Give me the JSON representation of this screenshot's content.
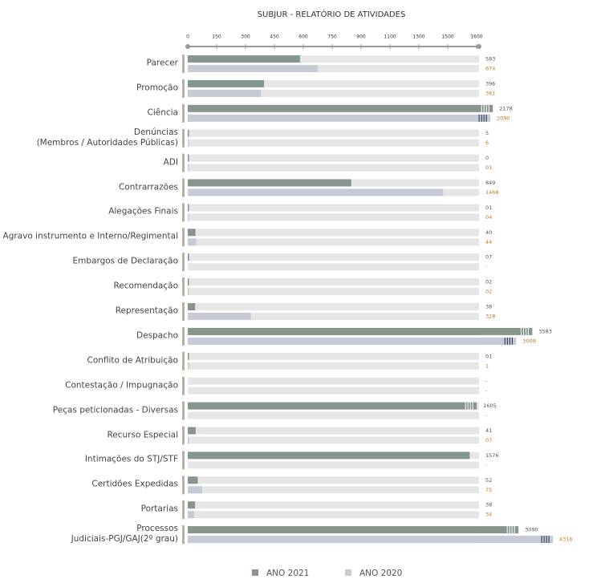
{
  "chart_data": {
    "type": "bar",
    "orientation": "horizontal",
    "title": "SUBJUR - RELATÓRIO DE ATIVIDADES",
    "categories": [
      "Parecer",
      "Promoção",
      "Ciência",
      "Denúncias\n(Membros / Autoridades Públicas)",
      "ADI",
      "Contrarrazões",
      "Alegações Finais",
      "Agravo instrumento e Interno/Regimental",
      "Embargos de Declaração",
      "Recomendação",
      "Representação",
      "Despacho",
      "Conflito de Atribuição",
      "Contestação / Impugnação",
      "Peças peticionadas - Diversas",
      "Recurso Especial",
      "Intimações do STJ/STF",
      "Certidões Expedidas",
      "Portarias",
      "Processos\nJudiciais-PGJ/GAJ(2º grau)"
    ],
    "series": [
      {
        "name": "ANO 2021",
        "color": "#87968d",
        "label_color": "#555555",
        "values": [
          583,
          396,
          2178,
          5,
          0,
          849,
          1,
          40,
          7,
          2,
          38,
          3583,
          1,
          null,
          1605,
          41,
          1576,
          52,
          38,
          3090
        ],
        "value_labels": [
          "583",
          "396",
          "2178",
          "5",
          "0",
          "849",
          "01",
          "40",
          "07",
          "02",
          "38",
          "3583",
          "01",
          "-",
          "1605",
          "41",
          "1576",
          "52",
          "38",
          "3090"
        ]
      },
      {
        "name": "ANO 2020",
        "color": "#c5cad6",
        "label_color": "#c07a2a",
        "values": [
          674,
          381,
          2090,
          6,
          1,
          1468,
          4,
          44,
          null,
          2,
          328,
          3009,
          1,
          null,
          null,
          7,
          null,
          75,
          34,
          4316
        ],
        "value_labels": [
          "674",
          "381",
          "2090",
          "6",
          "01",
          "1468",
          "04",
          "44",
          "-",
          "02",
          "328",
          "3009",
          "1",
          "-",
          "-",
          "07",
          "-",
          "75",
          "34",
          "4316"
        ]
      }
    ],
    "xlim": [
      0,
      1600
    ],
    "xticks": [
      0,
      150,
      300,
      450,
      600,
      750,
      900,
      1100,
      1300,
      1500,
      1600
    ]
  }
}
